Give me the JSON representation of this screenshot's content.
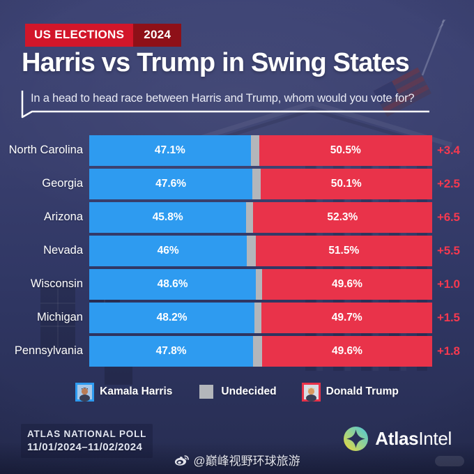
{
  "badge": {
    "label": "US ELECTIONS",
    "year": "2024",
    "label_bg": "#d2162a",
    "year_bg": "#8e1018"
  },
  "title": "Harris vs Trump in Swing States",
  "subtitle": "In a head to head race between Harris and Trump, whom would you vote for?",
  "chart_data": {
    "type": "bar",
    "orientation": "horizontal",
    "stacked": true,
    "unit": "%",
    "xlim": [
      0,
      100
    ],
    "value_labels": "inside",
    "legend_position": "bottom",
    "categories": [
      "North Carolina",
      "Georgia",
      "Arizona",
      "Nevada",
      "Wisconsin",
      "Michigan",
      "Pennsylvania"
    ],
    "series": [
      {
        "name": "Kamala Harris",
        "color": "#2e9bf0",
        "values": [
          47.1,
          47.6,
          45.8,
          46,
          48.6,
          48.2,
          47.8
        ],
        "labels": [
          "47.1%",
          "47.6%",
          "45.8%",
          "46%",
          "48.6%",
          "48.2%",
          "47.8%"
        ]
      },
      {
        "name": "Undecided",
        "color": "#b3b6bb",
        "values": [
          2.4,
          2.3,
          1.9,
          2.5,
          1.8,
          2.1,
          2.6
        ],
        "labels": [
          "",
          "",
          "",
          "",
          "",
          "",
          ""
        ]
      },
      {
        "name": "Donald Trump",
        "color": "#e9334a",
        "values": [
          50.5,
          50.1,
          52.3,
          51.5,
          49.6,
          49.7,
          49.6
        ],
        "labels": [
          "50.5%",
          "50.1%",
          "52.3%",
          "51.5%",
          "49.6%",
          "49.7%",
          "49.6%"
        ]
      }
    ],
    "trump_margins": [
      "+3.4",
      "+2.5",
      "+6.5",
      "+5.5",
      "+1.0",
      "+1.5",
      "+1.8"
    ],
    "margin_color": "#f5394f"
  },
  "legend": [
    {
      "kind": "photo",
      "label": "Kamala Harris",
      "frame_color": "#2e9bf0",
      "photo_bg": "#a8c8e8",
      "hair": "#2b2330",
      "skin": "#b97c55"
    },
    {
      "kind": "swatch",
      "label": "Undecided",
      "swatch_color": "#b3b6bb"
    },
    {
      "kind": "photo",
      "label": "Donald Trump",
      "frame_color": "#e9334a",
      "photo_bg": "#d8dde4",
      "hair": "#e6c468",
      "skin": "#d9995f"
    }
  ],
  "footer": {
    "poll_name": "ATLAS NATIONAL POLL",
    "poll_dates": "11/01/2024–11/02/2024",
    "brand_part1": "Atlas",
    "brand_part2": "Intel"
  },
  "watermark": {
    "handle": "@巅峰视野环球旅游"
  }
}
